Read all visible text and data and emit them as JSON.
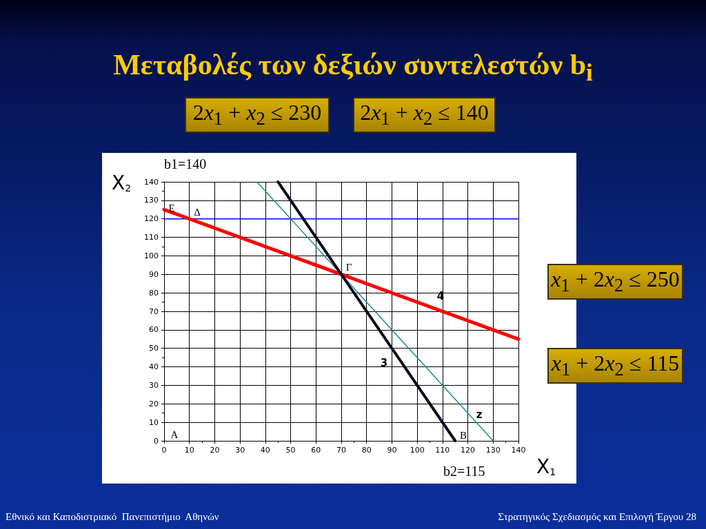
{
  "chart_data": {
    "type": "line",
    "title": "Μεταβολές των δεξιών συντελεστών b$_{i}$",
    "xlabel": "X$_{1}$",
    "ylabel": "X$_{2}$",
    "xlim": [
      0,
      140
    ],
    "ylim": [
      0,
      140
    ],
    "xticks": [
      0,
      10,
      20,
      30,
      40,
      50,
      60,
      70,
      80,
      90,
      100,
      110,
      120,
      130,
      140
    ],
    "yticks": [
      0,
      10,
      20,
      30,
      40,
      50,
      60,
      70,
      80,
      90,
      100,
      110,
      120,
      130,
      140
    ],
    "grid": true,
    "marker": "none",
    "line_style": "solid",
    "series": [
      {
        "color": "#0000ff",
        "x": [
          0,
          140
        ],
        "values": [
          120,
          120
        ]
      },
      {
        "color": "#1a8c8c",
        "x": [
          37,
          130
        ],
        "values": [
          139.5,
          0
        ]
      },
      {
        "color": "#ff0000",
        "x": [
          0,
          140
        ],
        "values": [
          125,
          55
        ]
      },
      {
        "color": "#0a0a1e",
        "x": [
          45,
          115
        ],
        "values": [
          140,
          0
        ]
      }
    ],
    "annotations": [
      "b1=140",
      "b2=115",
      "2x$_{1}$ + x$_{2}$ ≤ 230",
      "2x$_{1}$ + x$_{2}$ ≤ 140",
      "x$_{1}$ + 2x$_{2}$ ≤ 250",
      "x$_{1}$ + 2x$_{2}$ ≤ 115",
      "Εθνικό και Καποδιστριακό  Πανεπιστήμιο  Αθηνών",
      "Στρατηγικός Σχεδιασμός και Επιλογή Έργου 28",
      "Ε",
      "Δ",
      "Γ",
      "Β",
      "Α",
      "4",
      "3",
      "z"
    ]
  }
}
